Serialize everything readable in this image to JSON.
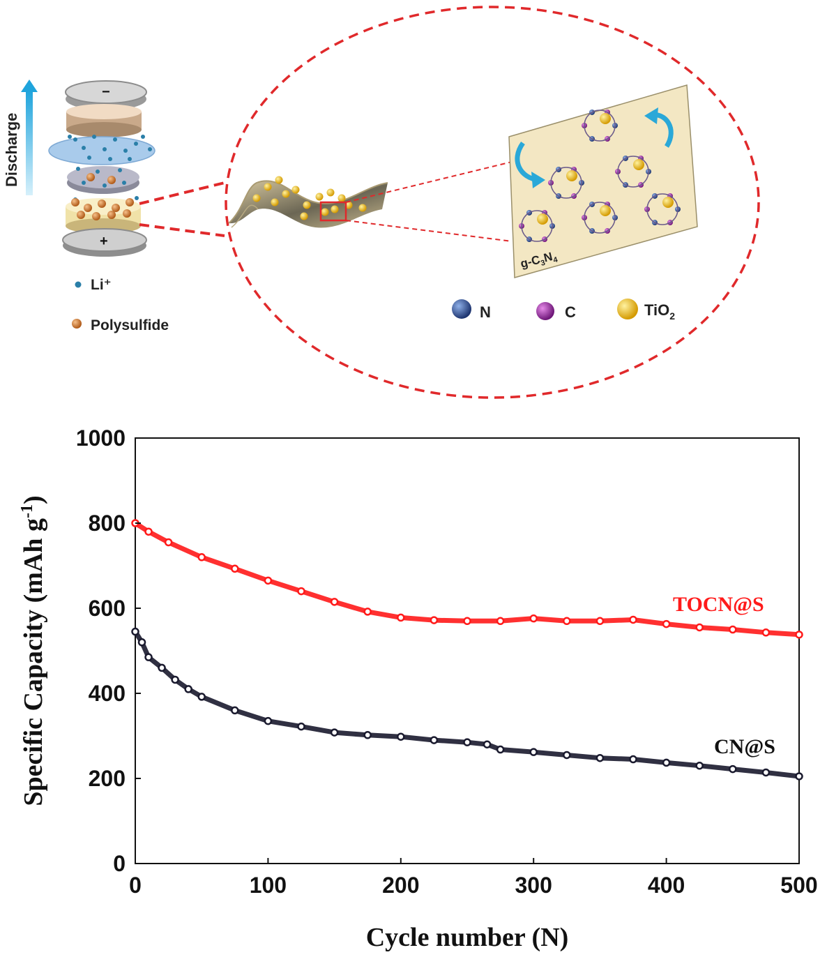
{
  "diagram": {
    "discharge_label": "Discharge",
    "battery": {
      "minus_sign": "−",
      "plus_sign": "+"
    },
    "legend_left": [
      {
        "label": "Li⁺",
        "color": "#2a7fa8"
      },
      {
        "label": "Polysulfide",
        "color": "#d2802f"
      }
    ],
    "panel_label_base": "g-C",
    "panel_label_sub1": "3",
    "panel_label_mid": "N",
    "panel_label_sub2": "4",
    "legend_right": [
      {
        "label": "N",
        "color": "#24407a"
      },
      {
        "label": "C",
        "color": "#9a2aa0"
      },
      {
        "label": "TiO",
        "sub": "2",
        "color": "#f0c020"
      }
    ],
    "colors": {
      "dashed_red": "#e0292b",
      "arrow_blue": "#2aa8d8",
      "panel_fill": "#f3e7c3"
    }
  },
  "chart_data": {
    "type": "scatter",
    "xlabel": "Cycle number (N)",
    "ylabel_main": "Specific Capacity (mAh g",
    "ylabel_sup": "-1",
    "ylabel_close": ")",
    "xlim": [
      0,
      500
    ],
    "ylim": [
      0,
      1000
    ],
    "xticks": [
      "0",
      "100",
      "200",
      "300",
      "400",
      "500"
    ],
    "yticks": [
      "0",
      "200",
      "400",
      "600",
      "800",
      "1000"
    ],
    "grid": false,
    "series": [
      {
        "name": "TOCN@S",
        "color": "#ff1a1a",
        "x": [
          0,
          10,
          25,
          50,
          75,
          100,
          125,
          150,
          175,
          200,
          225,
          250,
          275,
          300,
          325,
          350,
          375,
          400,
          425,
          450,
          475,
          500
        ],
        "y": [
          800,
          780,
          755,
          720,
          693,
          665,
          640,
          615,
          592,
          578,
          572,
          570,
          570,
          576,
          570,
          570,
          573,
          563,
          555,
          550,
          543,
          538
        ]
      },
      {
        "name": "CN@S",
        "color": "#1a1a2e",
        "x": [
          0,
          5,
          10,
          20,
          30,
          40,
          50,
          75,
          100,
          125,
          150,
          175,
          200,
          225,
          250,
          265,
          275,
          300,
          325,
          350,
          375,
          400,
          425,
          450,
          475,
          500
        ],
        "y": [
          545,
          520,
          485,
          460,
          432,
          410,
          392,
          360,
          335,
          322,
          308,
          302,
          298,
          290,
          285,
          280,
          268,
          262,
          255,
          248,
          245,
          237,
          230,
          222,
          214,
          205
        ]
      }
    ]
  }
}
